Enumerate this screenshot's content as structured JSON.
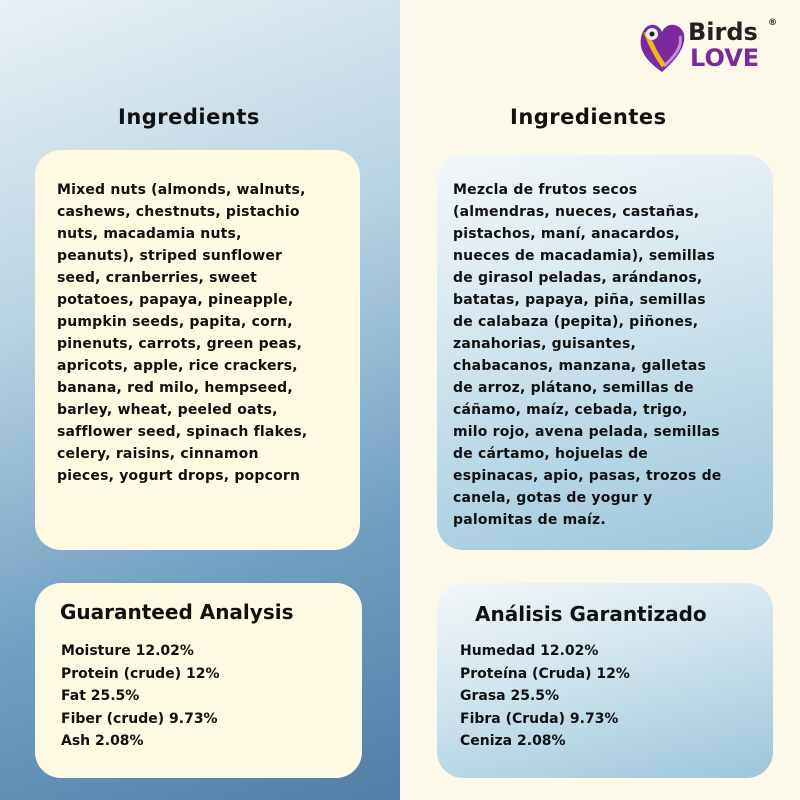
{
  "brand": {
    "line1": "Birds",
    "line2": "LOVE",
    "registered": "®",
    "colors": {
      "purple": "#7a2a9c",
      "yellow": "#f2b51a"
    }
  },
  "en": {
    "heading": "Ingredients",
    "ingredients": "Mixed nuts (almonds, walnuts,\ncashews, chestnuts, pistachio\nnuts, macadamia nuts,\npeanuts), striped sunflower\nseed, cranberries, sweet\npotatoes, papaya, pineapple,\npumpkin seeds, papita, corn,\npinenuts, carrots, green peas,\napricots, apple, rice crackers,\nbanana, red milo, hempseed,\nbarley, wheat, peeled oats,\nsafflower seed, spinach flakes,\ncelery, raisins, cinnamon\npieces, yogurt drops, popcorn",
    "analysis_title": "Guaranteed Analysis",
    "analysis": [
      "Moisture  12.02%",
      "Protein (crude) 12%",
      "Fat 25.5%",
      "Fiber (crude)  9.73%",
      "Ash 2.08%"
    ]
  },
  "es": {
    "heading": "Ingredientes",
    "ingredients": "Mezcla de frutos secos\n(almendras, nueces, castañas,\npistachos, maní, anacardos,\nnueces de macadamia), semillas\nde girasol peladas, arándanos,\nbatatas, papaya, piña, semillas\nde calabaza (pepita), piñones,\nzanahorias, guisantes,\nchabacanos, manzana, galletas\nde arroz, plátano, semillas de\ncáñamo, maíz, cebada, trigo,\nmilo rojo, avena pelada, semillas\nde cártamo, hojuelas de\nespinacas, apio, pasas, trozos de\ncanela, gotas de yogur y\npalomitas de maíz.",
    "analysis_title": "Análisis Garantizado",
    "analysis": [
      "Humedad  12.02%",
      "Proteína (Cruda) 12%",
      "Grasa 25.5%",
      "Fibra (Cruda) 9.73%",
      "Ceniza  2.08%"
    ]
  }
}
